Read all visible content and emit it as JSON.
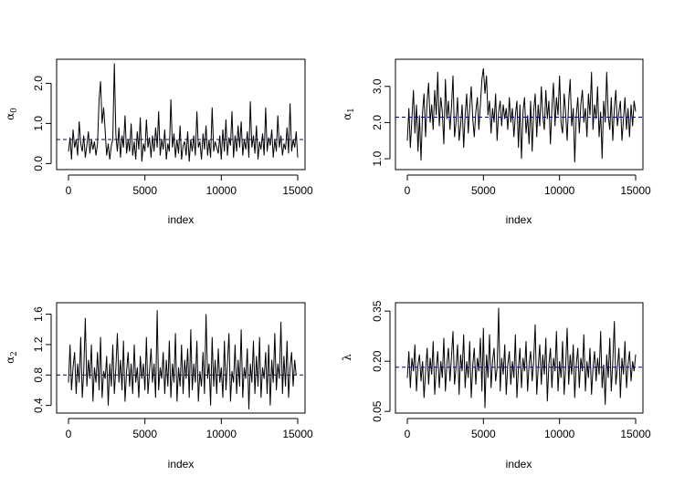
{
  "figure": {
    "background": "#ffffff",
    "trace_color": "#000000",
    "mean_line_color": "#00008b"
  },
  "chart_data": [
    {
      "type": "line",
      "ylabel": "α",
      "ylabel_sub": "0",
      "xlabel": "index",
      "xlim": [
        0,
        15000
      ],
      "ylim": [
        -0.15,
        2.6
      ],
      "xticks": [
        "0",
        "5000",
        "10000",
        "15000"
      ],
      "yticks": [
        "0.0",
        "1.0",
        "2.0"
      ],
      "ytick_values": [
        0.0,
        1.0,
        2.0
      ],
      "mean_line": 0.6,
      "mean_line_style": "dashed",
      "series": [
        {
          "x_step": 100,
          "values": [
            0.3,
            0.65,
            0.1,
            0.85,
            0.4,
            0.6,
            0.2,
            1.05,
            0.5,
            0.3,
            0.7,
            0.15,
            0.45,
            0.8,
            0.25,
            0.6,
            0.35,
            0.55,
            0.2,
            0.5,
            1.6,
            2.05,
            1.0,
            1.4,
            0.8,
            0.2,
            0.5,
            0.1,
            0.45,
            0.6,
            2.5,
            0.7,
            0.3,
            0.9,
            0.15,
            0.7,
            0.4,
            1.2,
            0.25,
            0.6,
            0.3,
            1.0,
            0.2,
            0.55,
            0.1,
            0.8,
            0.35,
            1.15,
            0.05,
            0.5,
            0.3,
            1.1,
            0.4,
            0.65,
            0.15,
            0.7,
            0.3,
            0.9,
            0.4,
            1.3,
            0.2,
            0.6,
            0.35,
            0.85,
            0.1,
            0.5,
            0.3,
            1.6,
            0.4,
            0.75,
            0.15,
            0.6,
            0.25,
            0.95,
            0.1,
            0.45,
            0.55,
            0.2,
            0.8,
            0.05,
            0.6,
            0.3,
            0.7,
            0.2,
            1.3,
            0.4,
            0.55,
            0.1,
            0.75,
            0.35,
            0.95,
            0.2,
            0.6,
            0.15,
            1.4,
            0.3,
            0.55,
            0.4,
            0.25,
            0.7,
            0.1,
            0.85,
            0.3,
            1.1,
            0.2,
            0.65,
            0.45,
            1.3,
            0.15,
            0.7,
            0.3,
            0.95,
            0.4,
            1.05,
            0.2,
            0.6,
            0.35,
            0.8,
            0.15,
            1.55,
            0.4,
            0.7,
            0.25,
            0.95,
            0.1,
            0.55,
            0.35,
            0.75,
            0.2,
            1.4,
            0.3,
            0.65,
            0.45,
            0.85,
            0.15,
            0.6,
            0.3,
            1.2,
            0.4,
            0.7,
            0.2,
            0.5,
            0.35,
            0.9,
            0.25,
            1.5,
            0.3,
            0.6,
            0.4,
            0.8,
            0.15
          ]
        }
      ]
    },
    {
      "type": "line",
      "ylabel": "α",
      "ylabel_sub": "1",
      "xlabel": "index",
      "xlim": [
        0,
        15000
      ],
      "ylim": [
        0.7,
        3.75
      ],
      "xticks": [
        "0",
        "5000",
        "10000",
        "15000"
      ],
      "yticks": [
        "1.0",
        "2.0",
        "3.0"
      ],
      "ytick_values": [
        1.0,
        2.0,
        3.0
      ],
      "mean_line": 2.15,
      "mean_line_style": "dashed",
      "series": [
        {
          "x_step": 100,
          "values": [
            1.5,
            2.4,
            1.3,
            2.1,
            2.9,
            1.7,
            2.5,
            1.2,
            2.2,
            0.95,
            2.3,
            2.8,
            1.6,
            2.6,
            3.1,
            2.0,
            2.5,
            1.8,
            2.9,
            2.2,
            3.4,
            1.9,
            2.7,
            2.3,
            1.4,
            3.2,
            2.1,
            2.6,
            1.8,
            2.4,
            3.3,
            1.6,
            2.0,
            2.7,
            1.5,
            1.9,
            2.5,
            1.3,
            2.2,
            2.8,
            1.7,
            2.4,
            3.0,
            2.1,
            1.6,
            2.3,
            2.7,
            1.8,
            2.5,
            3.2,
            3.5,
            2.8,
            3.3,
            2.2,
            2.6,
            1.7,
            2.4,
            2.0,
            2.8,
            1.5,
            2.3,
            2.6,
            1.9,
            2.5,
            2.1,
            2.4,
            1.8,
            2.7,
            2.0,
            2.4,
            1.6,
            2.2,
            2.6,
            1.3,
            2.5,
            1.0,
            2.3,
            2.7,
            1.7,
            2.2,
            1.4,
            2.6,
            1.2,
            2.3,
            2.8,
            1.6,
            2.5,
            1.9,
            3.0,
            2.2,
            1.8,
            2.9,
            2.1,
            2.6,
            1.4,
            2.4,
            3.1,
            1.9,
            2.7,
            2.2,
            3.3,
            2.0,
            1.7,
            2.8,
            2.3,
            1.5,
            2.6,
            3.2,
            1.9,
            2.4,
            0.9,
            2.2,
            2.7,
            1.7,
            2.5,
            2.9,
            2.0,
            2.4,
            1.6,
            2.8,
            2.2,
            3.4,
            1.8,
            2.5,
            2.1,
            3.0,
            1.6,
            2.3,
            1.0,
            2.6,
            2.0,
            3.4,
            2.2,
            1.8,
            2.7,
            1.5,
            2.4,
            2.9,
            1.9,
            2.3,
            2.6,
            1.5,
            2.1,
            2.7,
            1.8,
            2.4,
            1.6,
            2.5,
            1.9,
            2.6,
            2.3
          ]
        }
      ]
    },
    {
      "type": "line",
      "ylabel": "α",
      "ylabel_sub": "2",
      "xlabel": "index",
      "xlim": [
        0,
        15000
      ],
      "ylim": [
        0.3,
        1.75
      ],
      "xticks": [
        "0",
        "5000",
        "10000",
        "15000"
      ],
      "yticks": [
        "0.4",
        "0.8",
        "1.2",
        "1.6"
      ],
      "ytick_values": [
        0.4,
        0.8,
        1.2,
        1.6
      ],
      "mean_line": 0.8,
      "mean_line_style": "dashed",
      "series": [
        {
          "x_step": 100,
          "values": [
            0.7,
            1.2,
            0.6,
            0.9,
            1.1,
            0.55,
            0.95,
            0.7,
            1.3,
            0.5,
            0.85,
            1.55,
            0.65,
            1.0,
            0.75,
            1.2,
            0.45,
            0.9,
            0.7,
            1.1,
            0.6,
            1.3,
            0.5,
            0.85,
            0.75,
            1.05,
            0.4,
            0.95,
            0.65,
            1.2,
            0.55,
            0.9,
            1.35,
            0.7,
            1.0,
            0.6,
            1.25,
            0.45,
            0.85,
            1.1,
            0.65,
            0.95,
            0.55,
            1.2,
            0.7,
            0.9,
            0.5,
            1.05,
            0.75,
            0.95,
            0.6,
            1.3,
            0.55,
            0.85,
            1.15,
            0.7,
            0.95,
            0.5,
            1.65,
            0.6,
            0.9,
            0.75,
            1.1,
            0.55,
            1.0,
            0.65,
            1.25,
            0.5,
            0.95,
            0.7,
            1.35,
            0.45,
            0.9,
            0.65,
            1.2,
            0.55,
            1.0,
            0.75,
            1.15,
            0.5,
            1.4,
            0.6,
            0.95,
            0.7,
            1.25,
            0.45,
            0.85,
            0.65,
            1.1,
            0.55,
            1.6,
            0.75,
            0.95,
            0.4,
            1.3,
            0.65,
            1.0,
            0.55,
            1.15,
            0.7,
            0.9,
            0.5,
            1.25,
            0.6,
            0.95,
            1.35,
            0.45,
            0.85,
            0.7,
            1.2,
            0.55,
            1.0,
            0.65,
            1.4,
            0.5,
            0.9,
            0.75,
            1.15,
            0.35,
            0.95,
            0.7,
            1.25,
            0.55,
            1.05,
            0.65,
            1.3,
            0.5,
            0.9,
            0.75,
            1.1,
            0.55,
            1.2,
            0.4,
            1.0,
            0.7,
            1.35,
            0.6,
            0.95,
            0.75,
            1.5,
            0.55,
            1.05,
            0.65,
            1.25,
            0.5,
            0.9,
            1.1,
            0.65,
            1.0,
            0.8
          ]
        }
      ]
    },
    {
      "type": "line",
      "ylabel": "λ",
      "xlabel": "index",
      "xlim": [
        0,
        15000
      ],
      "ylim": [
        0.045,
        0.375
      ],
      "xticks": [
        "0",
        "5000",
        "10000",
        "15000"
      ],
      "yticks": [
        "0.05",
        "0.20",
        "0.35"
      ],
      "ytick_values": [
        0.05,
        0.2,
        0.35
      ],
      "mean_line": 0.182,
      "mean_line_style": "dashed",
      "series": [
        {
          "x_step": 100,
          "values": [
            0.15,
            0.23,
            0.12,
            0.21,
            0.17,
            0.25,
            0.11,
            0.19,
            0.22,
            0.14,
            0.2,
            0.09,
            0.17,
            0.24,
            0.13,
            0.21,
            0.16,
            0.26,
            0.1,
            0.18,
            0.23,
            0.12,
            0.2,
            0.15,
            0.27,
            0.11,
            0.19,
            0.24,
            0.14,
            0.21,
            0.29,
            0.13,
            0.18,
            0.25,
            0.1,
            0.22,
            0.17,
            0.28,
            0.12,
            0.2,
            0.15,
            0.26,
            0.09,
            0.19,
            0.24,
            0.13,
            0.21,
            0.17,
            0.27,
            0.11,
            0.3,
            0.06,
            0.22,
            0.15,
            0.28,
            0.12,
            0.2,
            0.24,
            0.14,
            0.18,
            0.36,
            0.11,
            0.21,
            0.16,
            0.25,
            0.1,
            0.19,
            0.23,
            0.13,
            0.2,
            0.15,
            0.28,
            0.09,
            0.18,
            0.24,
            0.12,
            0.21,
            0.17,
            0.26,
            0.11,
            0.19,
            0.23,
            0.14,
            0.2,
            0.31,
            0.1,
            0.18,
            0.25,
            0.13,
            0.22,
            0.16,
            0.27,
            0.08,
            0.19,
            0.24,
            0.12,
            0.21,
            0.17,
            0.29,
            0.11,
            0.2,
            0.15,
            0.26,
            0.1,
            0.18,
            0.3,
            0.13,
            0.22,
            0.16,
            0.25,
            0.09,
            0.19,
            0.24,
            0.12,
            0.21,
            0.17,
            0.28,
            0.11,
            0.2,
            0.15,
            0.24,
            0.1,
            0.18,
            0.23,
            0.14,
            0.21,
            0.16,
            0.29,
            0.12,
            0.19,
            0.07,
            0.22,
            0.15,
            0.27,
            0.11,
            0.2,
            0.32,
            0.13,
            0.18,
            0.24,
            0.09,
            0.21,
            0.16,
            0.26,
            0.12,
            0.19,
            0.23,
            0.14,
            0.2,
            0.17,
            0.22
          ]
        }
      ]
    }
  ]
}
